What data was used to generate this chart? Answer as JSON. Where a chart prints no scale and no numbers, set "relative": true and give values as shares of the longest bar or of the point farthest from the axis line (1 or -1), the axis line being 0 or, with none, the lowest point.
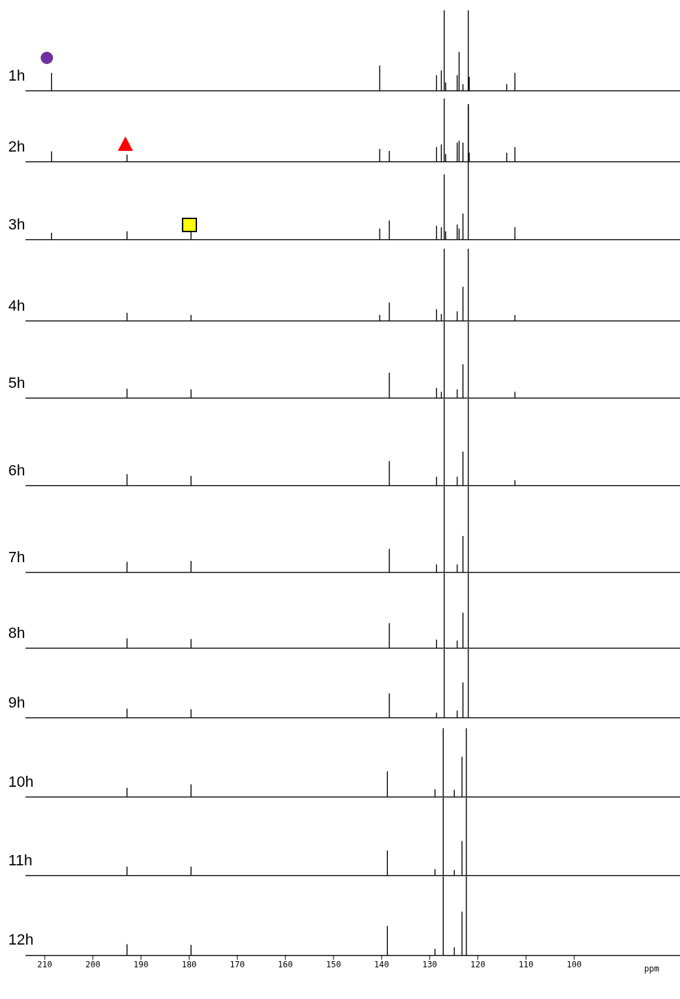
{
  "chart_data": [
    {
      "type": "line",
      "title": "1h",
      "relative": true,
      "xlim": [
        214,
        78
      ],
      "tick_labels": false,
      "color": "#000000",
      "x": [
        214,
        208.6,
        208.6,
        208.6,
        140.4,
        140.4,
        140.4,
        128.6,
        128.6,
        128.6,
        127.6,
        127.6,
        127.6,
        127.0,
        127.0,
        127.0,
        126.7,
        126.7,
        126.7,
        124.3,
        124.3,
        124.3,
        123.9,
        123.9,
        123.9,
        123.1,
        123.1,
        123.1,
        122.0,
        122.0,
        122.0,
        121.8,
        121.8,
        121.8,
        114.0,
        114.0,
        114.0,
        112.3,
        112.3,
        112.3,
        78
      ],
      "values": [
        0,
        0,
        0.22,
        0,
        0,
        0.31,
        0,
        0,
        0.19,
        0,
        0,
        0.25,
        0,
        0,
        1,
        0,
        0,
        0.1,
        0,
        0,
        0.19,
        0,
        0,
        0.48,
        0,
        0,
        0.08,
        0,
        0,
        1,
        0,
        0,
        0.17,
        0,
        0,
        0.08,
        0,
        0,
        0.22,
        0,
        0
      ]
    },
    {
      "type": "line",
      "title": "2h",
      "relative": true,
      "xlim": [
        214,
        78
      ],
      "tick_labels": false,
      "color": "#000000",
      "x": [
        214,
        208.6,
        208.6,
        208.6,
        192.9,
        192.9,
        192.9,
        140.4,
        140.4,
        140.4,
        138.4,
        138.4,
        138.4,
        128.6,
        128.6,
        128.6,
        127.6,
        127.6,
        127.6,
        127.0,
        127.0,
        127.0,
        126.7,
        126.7,
        126.7,
        124.3,
        124.3,
        124.3,
        123.9,
        123.9,
        123.9,
        123.1,
        123.1,
        123.1,
        122.0,
        122.0,
        122.0,
        121.8,
        121.8,
        121.8,
        114.0,
        114.0,
        114.0,
        112.3,
        112.3,
        112.3,
        78
      ],
      "values": [
        0,
        0,
        0.16,
        0,
        0,
        0.11,
        0,
        0,
        0.2,
        0,
        0,
        0.17,
        0,
        0,
        0.23,
        0,
        0,
        0.27,
        0,
        0,
        1,
        0,
        0,
        0.12,
        0,
        0,
        0.3,
        0,
        0,
        0.33,
        0,
        0,
        0.3,
        0,
        0,
        0.9,
        0,
        0,
        0.14,
        0,
        0,
        0.14,
        0,
        0,
        0.23,
        0,
        0
      ]
    },
    {
      "type": "line",
      "title": "3h",
      "relative": true,
      "xlim": [
        214,
        78
      ],
      "tick_labels": false,
      "color": "#000000",
      "x": [
        214,
        208.6,
        208.6,
        208.6,
        192.9,
        192.9,
        192.9,
        179.6,
        179.6,
        179.6,
        140.4,
        140.4,
        140.4,
        138.4,
        138.4,
        138.4,
        128.6,
        128.6,
        128.6,
        127.6,
        127.6,
        127.6,
        127.0,
        127.0,
        127.0,
        126.7,
        126.7,
        126.7,
        124.3,
        124.3,
        124.3,
        123.9,
        123.9,
        123.9,
        123.1,
        123.1,
        123.1,
        122.0,
        122.0,
        122.0,
        112.3,
        112.3,
        112.3,
        78
      ],
      "values": [
        0,
        0,
        0.05,
        0,
        0,
        0.06,
        0,
        0,
        0.06,
        0,
        0,
        0.08,
        0,
        0,
        0.14,
        0,
        0,
        0.1,
        0,
        0,
        0.09,
        0,
        0,
        0.48,
        0,
        0,
        0.06,
        0,
        0,
        0.11,
        0,
        0,
        0.08,
        0,
        0,
        0.19,
        0,
        0,
        1,
        0,
        0,
        0.09,
        0,
        0
      ]
    },
    {
      "type": "line",
      "title": "4h",
      "relative": true,
      "xlim": [
        214,
        78
      ],
      "tick_labels": false,
      "color": "#000000",
      "x": [
        214,
        192.9,
        192.9,
        192.9,
        179.6,
        179.6,
        179.6,
        140.4,
        140.4,
        140.4,
        138.4,
        138.4,
        138.4,
        128.6,
        128.6,
        128.6,
        127.6,
        127.6,
        127.6,
        127.0,
        127.0,
        127.0,
        124.3,
        124.3,
        124.3,
        123.1,
        123.1,
        123.1,
        122.0,
        122.0,
        122.0,
        112.3,
        112.3,
        112.3,
        78
      ],
      "values": [
        0,
        0,
        0.11,
        0,
        0,
        0.08,
        0,
        0,
        0.08,
        0,
        0,
        0.25,
        0,
        0,
        0.16,
        0,
        0,
        0.09,
        0,
        0,
        1,
        0,
        0,
        0.13,
        0,
        0,
        0.47,
        0,
        0,
        1,
        0,
        0,
        0.08,
        0,
        0
      ]
    },
    {
      "type": "line",
      "title": "5h",
      "relative": true,
      "xlim": [
        214,
        78
      ],
      "tick_labels": false,
      "color": "#000000",
      "x": [
        214,
        192.9,
        192.9,
        192.9,
        179.6,
        179.6,
        179.6,
        138.4,
        138.4,
        138.4,
        128.6,
        128.6,
        128.6,
        127.6,
        127.6,
        127.6,
        127.0,
        127.0,
        127.0,
        124.3,
        124.3,
        124.3,
        123.1,
        123.1,
        123.1,
        122.0,
        122.0,
        122.0,
        112.3,
        112.3,
        112.3,
        78
      ],
      "values": [
        0,
        0,
        0.12,
        0,
        0,
        0.11,
        0,
        0,
        0.33,
        0,
        0,
        0.13,
        0,
        0,
        0.08,
        0,
        0,
        1,
        0,
        0,
        0.11,
        0,
        0,
        0.44,
        0,
        0,
        1,
        0,
        0,
        0.08,
        0,
        0
      ]
    },
    {
      "type": "line",
      "title": "6h",
      "relative": true,
      "xlim": [
        214,
        78
      ],
      "tick_labels": false,
      "color": "#000000",
      "x": [
        214,
        192.9,
        192.9,
        192.9,
        179.6,
        179.6,
        179.6,
        138.4,
        138.4,
        138.4,
        128.6,
        128.6,
        128.6,
        127.0,
        127.0,
        127.0,
        124.3,
        124.3,
        124.3,
        123.1,
        123.1,
        123.1,
        122.0,
        122.0,
        122.0,
        112.3,
        112.3,
        112.3,
        78
      ],
      "values": [
        0,
        0,
        0.13,
        0,
        0,
        0.11,
        0,
        0,
        0.28,
        0,
        0,
        0.1,
        0,
        0,
        1,
        0,
        0,
        0.1,
        0,
        0,
        0.39,
        0,
        0,
        1,
        0,
        0,
        0.06,
        0,
        0
      ]
    },
    {
      "type": "line",
      "title": "7h",
      "relative": true,
      "xlim": [
        214,
        78
      ],
      "tick_labels": false,
      "color": "#000000",
      "x": [
        214,
        192.9,
        192.9,
        192.9,
        179.6,
        179.6,
        179.6,
        138.4,
        138.4,
        138.4,
        128.6,
        128.6,
        128.6,
        127.0,
        127.0,
        127.0,
        124.3,
        124.3,
        124.3,
        123.1,
        123.1,
        123.1,
        122.0,
        122.0,
        122.0,
        78
      ],
      "values": [
        0,
        0,
        0.12,
        0,
        0,
        0.13,
        0,
        0,
        0.27,
        0,
        0,
        0.09,
        0,
        0,
        1,
        0,
        0,
        0.09,
        0,
        0,
        0.42,
        0,
        0,
        1,
        0,
        0
      ]
    },
    {
      "type": "line",
      "title": "8h",
      "relative": true,
      "xlim": [
        214,
        78
      ],
      "tick_labels": false,
      "color": "#000000",
      "x": [
        214,
        192.9,
        192.9,
        192.9,
        179.6,
        179.6,
        179.6,
        138.4,
        138.4,
        138.4,
        128.6,
        128.6,
        128.6,
        127.0,
        127.0,
        127.0,
        124.3,
        124.3,
        124.3,
        123.1,
        123.1,
        123.1,
        122.0,
        122.0,
        122.0,
        78
      ],
      "values": [
        0,
        0,
        0.13,
        0,
        0,
        0.12,
        0,
        0,
        0.33,
        0,
        0,
        0.11,
        0,
        0,
        1,
        0,
        0,
        0.1,
        0,
        0,
        0.47,
        0,
        0,
        1,
        0,
        0
      ]
    },
    {
      "type": "line",
      "title": "9h",
      "relative": true,
      "xlim": [
        214,
        78
      ],
      "tick_labels": false,
      "color": "#000000",
      "x": [
        214,
        192.9,
        192.9,
        192.9,
        179.6,
        179.6,
        179.6,
        138.4,
        138.4,
        138.4,
        128.6,
        128.6,
        128.6,
        127.0,
        127.0,
        127.0,
        124.3,
        124.3,
        124.3,
        123.1,
        123.1,
        123.1,
        122.0,
        122.0,
        122.0,
        78
      ],
      "values": [
        0,
        0,
        0.13,
        0,
        0,
        0.12,
        0,
        0,
        0.35,
        0,
        0,
        0.07,
        0,
        0,
        1,
        0,
        0,
        0.1,
        0,
        0,
        0.51,
        0,
        0,
        1,
        0,
        0
      ]
    },
    {
      "type": "line",
      "title": "10h",
      "relative": true,
      "xlim": [
        214,
        78
      ],
      "tick_labels": false,
      "color": "#000000",
      "x": [
        214,
        192.9,
        192.9,
        192.9,
        179.6,
        179.6,
        179.6,
        138.8,
        138.8,
        138.8,
        128.9,
        128.9,
        128.9,
        127.2,
        127.2,
        127.2,
        124.9,
        124.9,
        124.9,
        123.3,
        123.3,
        123.3,
        122.4,
        122.4,
        122.4,
        78
      ],
      "values": [
        0,
        0,
        0.13,
        0,
        0,
        0.18,
        0,
        0,
        0.37,
        0,
        0,
        0.11,
        0,
        0,
        1,
        0,
        0,
        0.1,
        0,
        0,
        0.58,
        0,
        0,
        1,
        0,
        0
      ]
    },
    {
      "type": "line",
      "title": "11h",
      "relative": true,
      "xlim": [
        214,
        78
      ],
      "tick_labels": false,
      "color": "#000000",
      "x": [
        214,
        192.9,
        192.9,
        192.9,
        179.6,
        179.6,
        179.6,
        138.8,
        138.8,
        138.8,
        128.9,
        128.9,
        128.9,
        127.2,
        127.2,
        127.2,
        124.9,
        124.9,
        124.9,
        123.3,
        123.3,
        123.3,
        122.4,
        122.4,
        122.4,
        78
      ],
      "values": [
        0,
        0,
        0.11,
        0,
        0,
        0.11,
        0,
        0,
        0.32,
        0,
        0,
        0.08,
        0,
        0,
        1,
        0,
        0,
        0.07,
        0,
        0,
        0.44,
        0,
        0,
        1,
        0,
        0
      ]
    },
    {
      "type": "line",
      "title": "12h",
      "relative": true,
      "xlim": [
        214,
        78
      ],
      "tick_labels": "x",
      "xlabel": "ppm",
      "color": "#000000",
      "x": [
        214,
        192.9,
        192.9,
        192.9,
        179.6,
        179.6,
        179.6,
        138.8,
        138.8,
        138.8,
        128.9,
        128.9,
        128.9,
        127.2,
        127.2,
        127.2,
        124.9,
        124.9,
        124.9,
        123.3,
        123.3,
        123.3,
        122.4,
        122.4,
        122.4,
        78
      ],
      "values": [
        0,
        0,
        0.14,
        0,
        0,
        0.13,
        0,
        0,
        0.37,
        0,
        0,
        0.08,
        0,
        0,
        1,
        0,
        0,
        0.1,
        0,
        0,
        0.55,
        0,
        0,
        1,
        0,
        0
      ],
      "xticks": [
        210,
        200,
        190,
        180,
        170,
        160,
        150,
        140,
        130,
        120,
        110,
        100
      ]
    }
  ]
}
